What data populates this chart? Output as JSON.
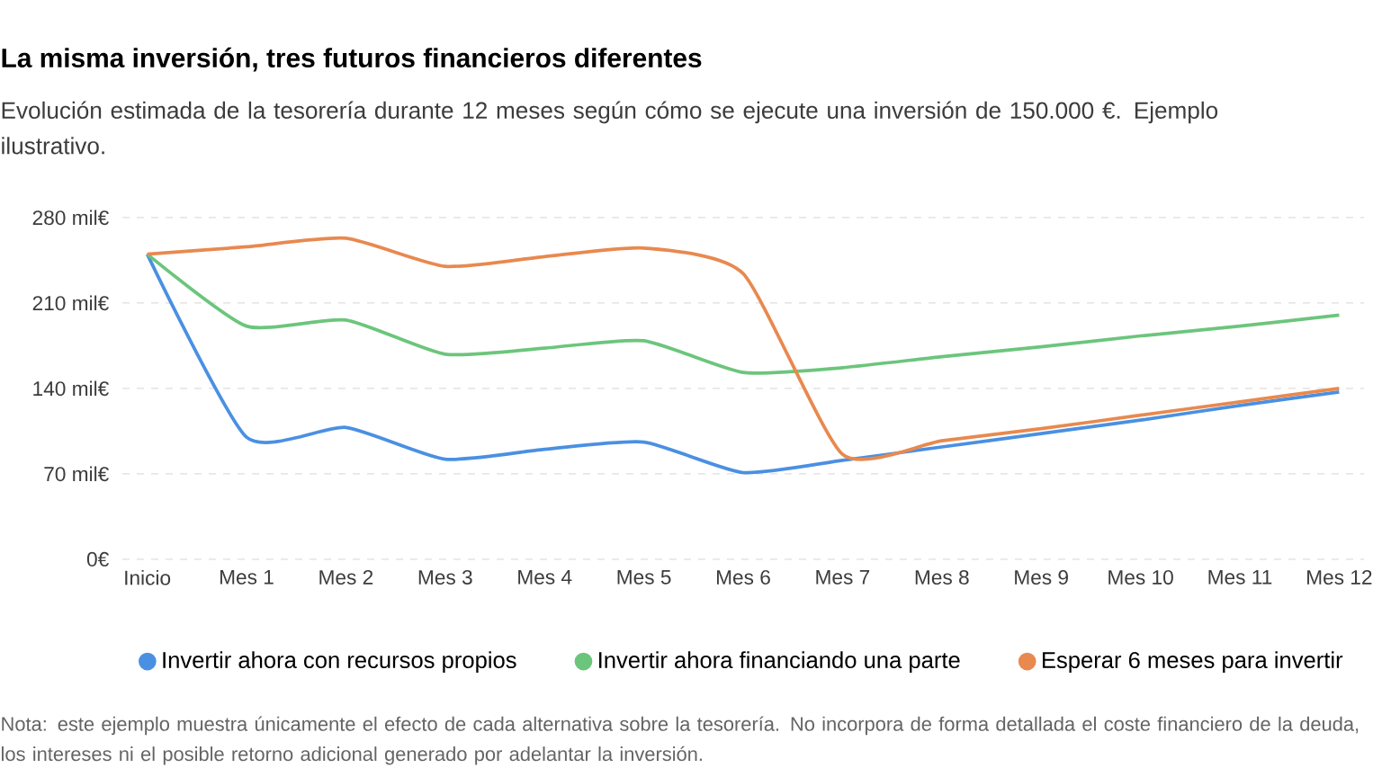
{
  "chart_data": {
    "type": "line",
    "title": "La misma inversión, tres futuros financieros diferentes",
    "subtitle": "Evolución estimada de la tesorería durante 12 meses según cómo se ejecute una inversión de 150.000 €. Ejemplo ilustrativo.",
    "categories": [
      "Inicio",
      "Mes 1",
      "Mes 2",
      "Mes 3",
      "Mes 4",
      "Mes 5",
      "Mes 6",
      "Mes 7",
      "Mes 8",
      "Mes 9",
      "Mes 10",
      "Mes 11",
      "Mes 12"
    ],
    "series": [
      {
        "name": "Invertir ahora con recursos propios",
        "color": "#4a90e2",
        "values": [
          250,
          100,
          108,
          82,
          90,
          96,
          71,
          81,
          92,
          103,
          114,
          126,
          137
        ]
      },
      {
        "name": "Invertir ahora financiando una parte",
        "color": "#6cc57c",
        "values": [
          250,
          191,
          196,
          168,
          173,
          179,
          153,
          157,
          166,
          174,
          183,
          191,
          200
        ]
      },
      {
        "name": "Esperar 6 meses para invertir",
        "color": "#e8894f",
        "values": [
          250,
          256,
          263,
          240,
          248,
          255,
          234,
          86,
          97,
          107,
          118,
          129,
          140
        ]
      }
    ],
    "ylim": [
      0,
      280
    ],
    "yticks": [
      {
        "value": 0,
        "label": "0€"
      },
      {
        "value": 70,
        "label": "70 mil€"
      },
      {
        "value": 140,
        "label": "140 mil€"
      },
      {
        "value": 210,
        "label": "210 mil€"
      },
      {
        "value": 280,
        "label": "280 mil€"
      }
    ],
    "grid": "y",
    "legend": "bottom",
    "marker": "none",
    "line_style": "solid",
    "annotations": [
      "Nota: este ejemplo muestra únicamente el efecto de cada alternativa sobre la tesorería. No incorpora de forma detallada el coste financiero de la deuda, los intereses ni el posible retorno adicional generado por adelantar la inversión."
    ]
  }
}
